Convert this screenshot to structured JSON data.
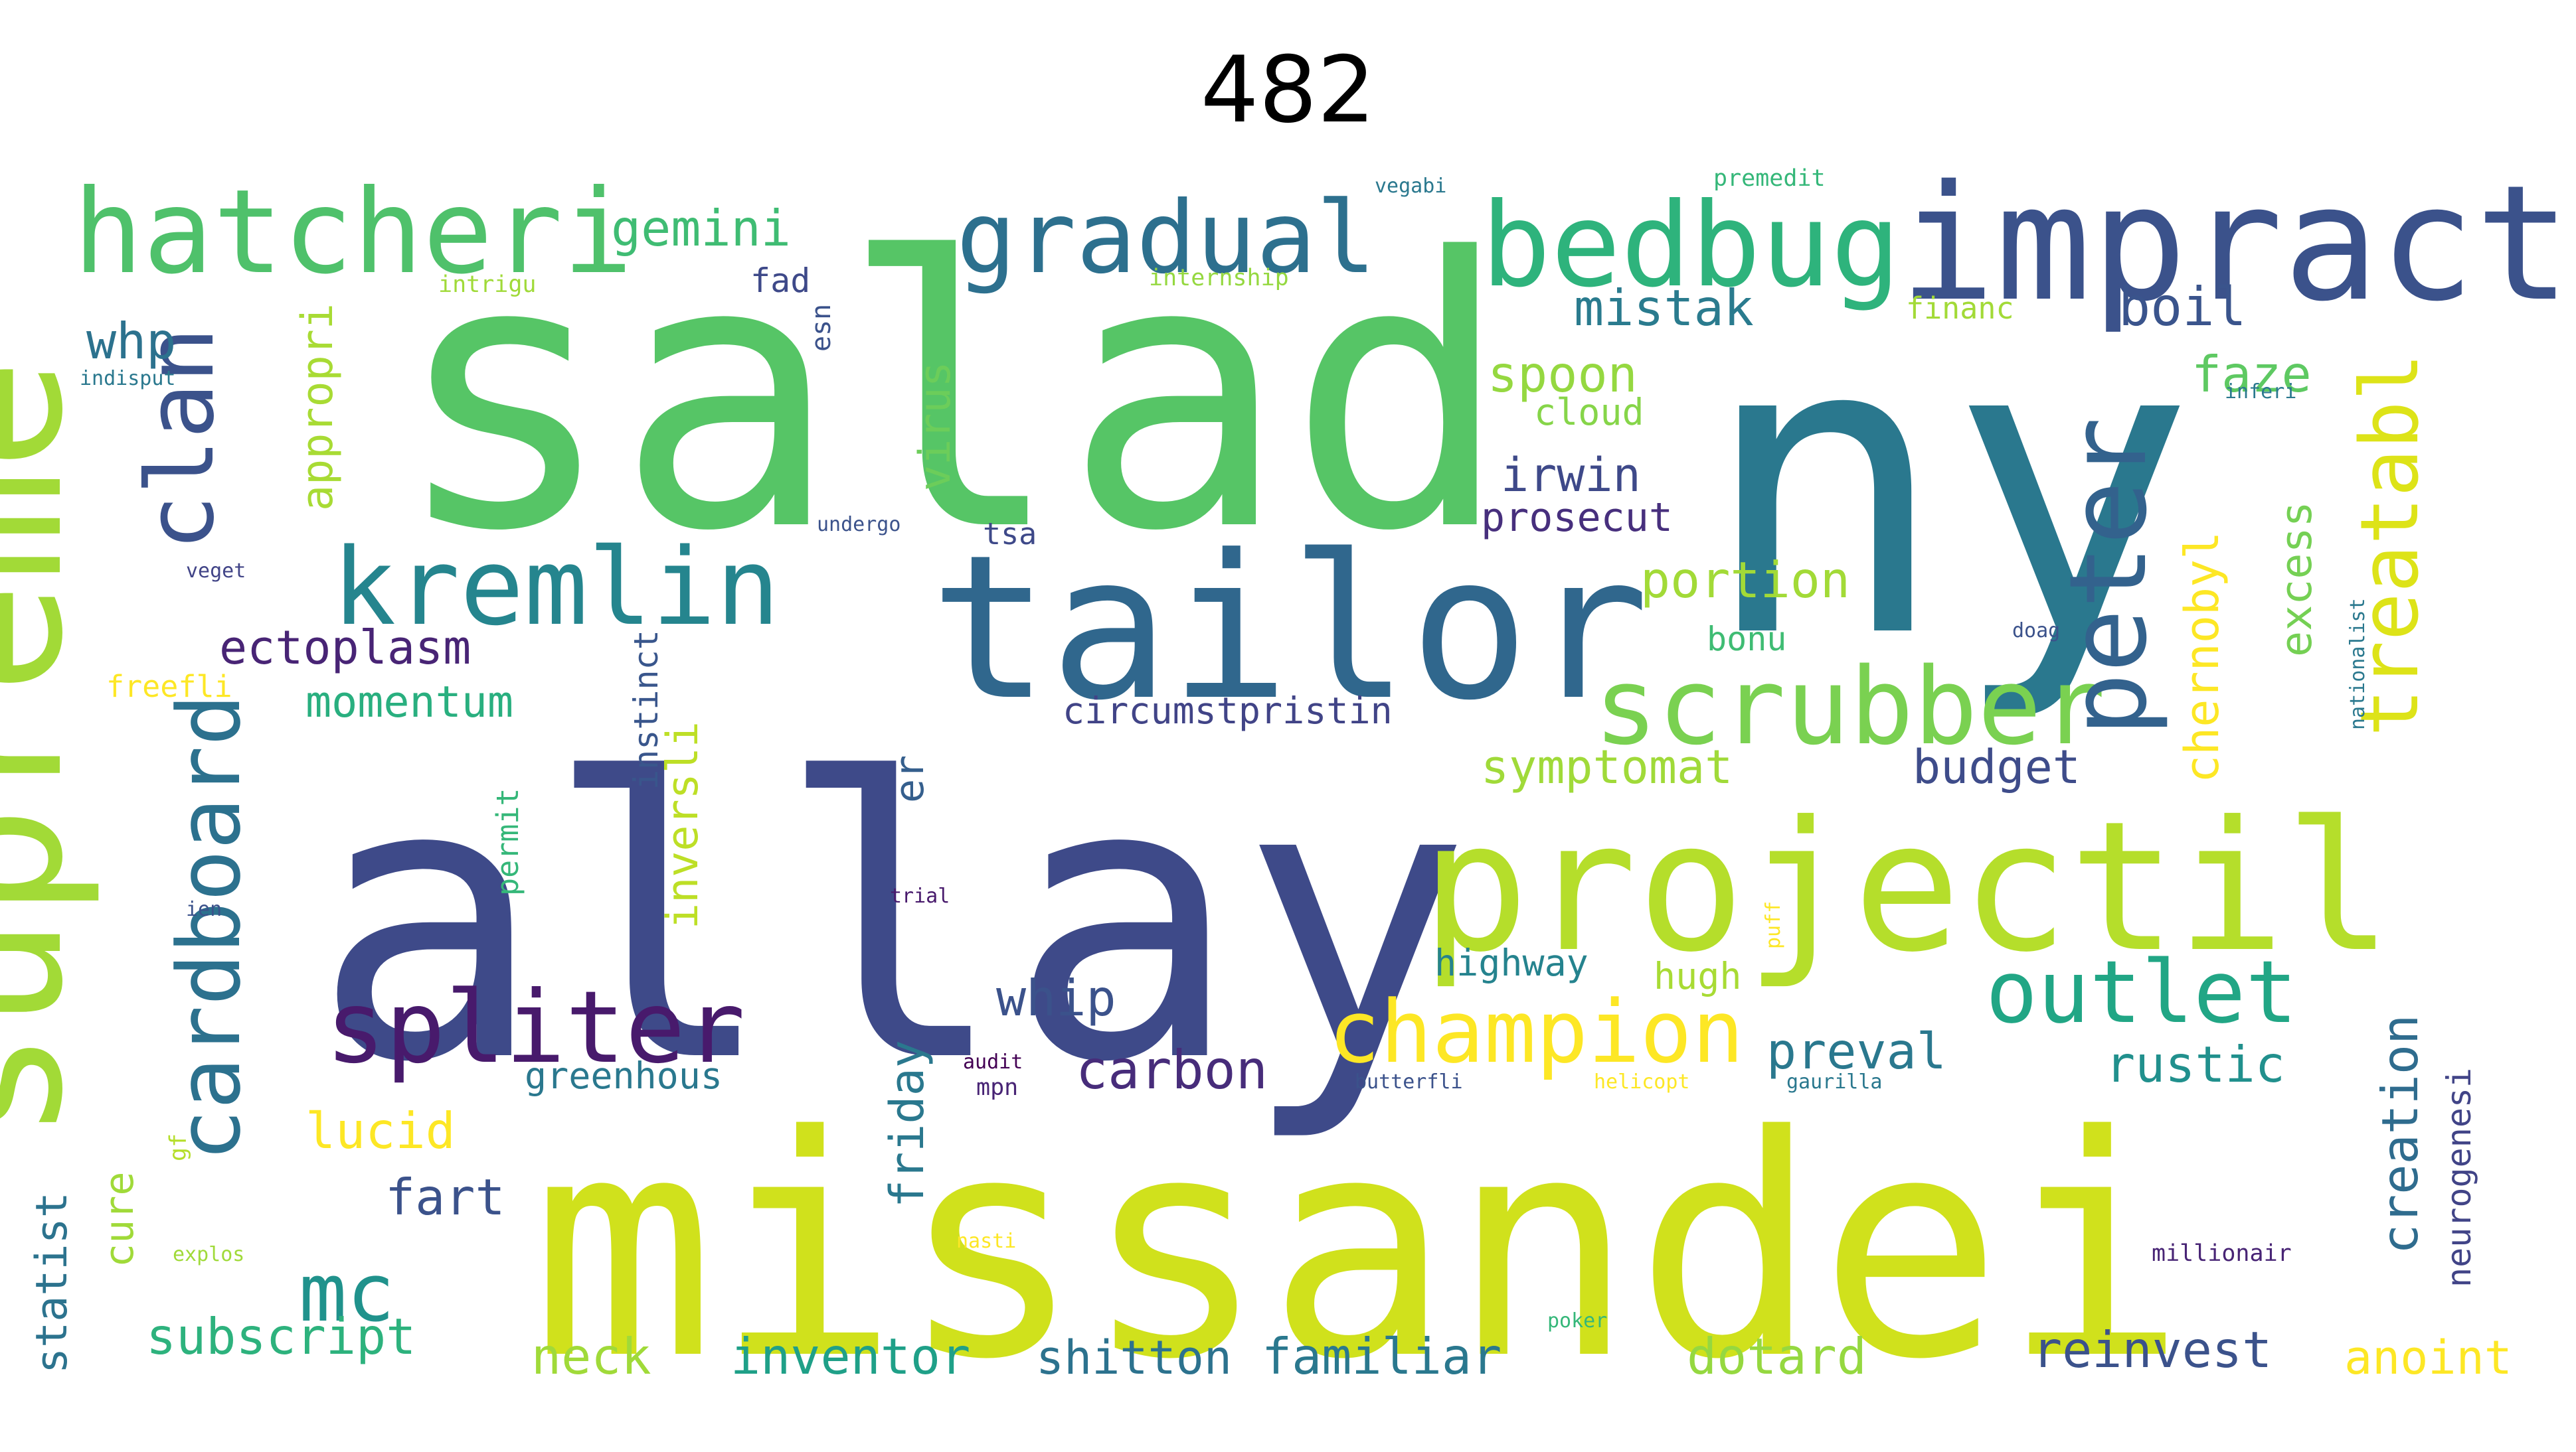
{
  "title": "482",
  "palette": "viridis",
  "words": [
    {
      "text": "salad",
      "color": "#56c566"
    },
    {
      "text": "ny",
      "color": "#2a788e"
    },
    {
      "text": "allay",
      "color": "#3e4a89"
    },
    {
      "text": "missandei",
      "color": "#d0e11c"
    },
    {
      "text": "projectil",
      "color": "#b5de2b"
    },
    {
      "text": "tailor",
      "color": "#30678d"
    },
    {
      "text": "supreme",
      "color": "#a2da37"
    },
    {
      "text": "impract",
      "color": "#3b528b"
    },
    {
      "text": "hatcheri",
      "color": "#4fc16b"
    },
    {
      "text": "bedbug",
      "color": "#2eb37c"
    },
    {
      "text": "gradual",
      "color": "#2d708e"
    },
    {
      "text": "kremlin",
      "color": "#25858e"
    },
    {
      "text": "scrubber",
      "color": "#7ad151"
    },
    {
      "text": "peter",
      "color": "#33628d"
    },
    {
      "text": "spliter",
      "color": "#481a6c"
    },
    {
      "text": "champion",
      "color": "#fde725"
    },
    {
      "text": "cardboard",
      "color": "#2c718e"
    },
    {
      "text": "clan",
      "color": "#3b528b"
    },
    {
      "text": "outlet",
      "color": "#21a685"
    },
    {
      "text": "treatabl",
      "color": "#dde318"
    },
    {
      "text": "mc",
      "color": "#20928c"
    },
    {
      "text": "gemini",
      "color": "#3fbc73"
    },
    {
      "text": "mistak",
      "color": "#2a7b8e"
    },
    {
      "text": "boil",
      "color": "#3a548c"
    },
    {
      "text": "whp",
      "color": "#2c728e"
    },
    {
      "text": "appropri",
      "color": "#a8db34"
    },
    {
      "text": "virus",
      "color": "#6ccd5a"
    },
    {
      "text": "spoon",
      "color": "#95d840"
    },
    {
      "text": "cloud",
      "color": "#86d549"
    },
    {
      "text": "faze",
      "color": "#5ec962"
    },
    {
      "text": "irwin",
      "color": "#3e4989"
    },
    {
      "text": "prosecut",
      "color": "#472f7d"
    },
    {
      "text": "portion",
      "color": "#a2da37"
    },
    {
      "text": "excess",
      "color": "#75d054"
    },
    {
      "text": "chernobyl",
      "color": "#fde725"
    },
    {
      "text": "ectoplasm",
      "color": "#482475"
    },
    {
      "text": "momentum",
      "color": "#29af7f"
    },
    {
      "text": "inversli",
      "color": "#bddf26"
    },
    {
      "text": "instinct",
      "color": "#39568c"
    },
    {
      "text": "symptomat",
      "color": "#a0da39"
    },
    {
      "text": "budget",
      "color": "#3e4c8a"
    },
    {
      "text": "circumstpristin",
      "color": "#414487"
    },
    {
      "text": "er",
      "color": "#355f8d"
    },
    {
      "text": "bonu",
      "color": "#3fbc73"
    },
    {
      "text": "whip",
      "color": "#3b528b"
    },
    {
      "text": "friday",
      "color": "#2a788e"
    },
    {
      "text": "carbon",
      "color": "#472c7a"
    },
    {
      "text": "preval",
      "color": "#2a788e"
    },
    {
      "text": "rustic",
      "color": "#21908d"
    },
    {
      "text": "creation",
      "color": "#2f6c8e"
    },
    {
      "text": "lucid",
      "color": "#fde725"
    },
    {
      "text": "fart",
      "color": "#3b528b"
    },
    {
      "text": "highway",
      "color": "#25838e"
    },
    {
      "text": "hugh",
      "color": "#a8db34"
    },
    {
      "text": "greenhous",
      "color": "#2a788e"
    },
    {
      "text": "cure",
      "color": "#a0da39"
    },
    {
      "text": "statist",
      "color": "#2c738e"
    },
    {
      "text": "subscript",
      "color": "#2db27d"
    },
    {
      "text": "neck",
      "color": "#a0da39"
    },
    {
      "text": "inventor",
      "color": "#1fa088"
    },
    {
      "text": "shitton",
      "color": "#2c728e"
    },
    {
      "text": "familiar",
      "color": "#2a788e"
    },
    {
      "text": "dotard",
      "color": "#95d840"
    },
    {
      "text": "reinvest",
      "color": "#3b528b"
    },
    {
      "text": "anoint",
      "color": "#fde725"
    },
    {
      "text": "neurogenesi",
      "color": "#414487"
    },
    {
      "text": "fad",
      "color": "#3e4989"
    },
    {
      "text": "esn",
      "color": "#3b528b"
    },
    {
      "text": "intrigu",
      "color": "#a0da39"
    },
    {
      "text": "internship",
      "color": "#95d840"
    },
    {
      "text": "vegabi",
      "color": "#2a788e"
    },
    {
      "text": "premedit",
      "color": "#35b779"
    },
    {
      "text": "financ",
      "color": "#a2da37"
    },
    {
      "text": "indisput",
      "color": "#2a788e"
    },
    {
      "text": "undergo",
      "color": "#3b528b"
    },
    {
      "text": "tsa",
      "color": "#3e4989"
    },
    {
      "text": "veget",
      "color": "#414487"
    },
    {
      "text": "freefli",
      "color": "#fde725"
    },
    {
      "text": "permit",
      "color": "#35b779"
    },
    {
      "text": "ien",
      "color": "#3b528b"
    },
    {
      "text": "trial",
      "color": "#481a6c"
    },
    {
      "text": "puff",
      "color": "#fde725"
    },
    {
      "text": "audit",
      "color": "#440154"
    },
    {
      "text": "mpn",
      "color": "#482475"
    },
    {
      "text": "butterfli",
      "color": "#3b528b"
    },
    {
      "text": "helicopt",
      "color": "#fde725"
    },
    {
      "text": "gaurilla",
      "color": "#2a788e"
    },
    {
      "text": "millionair",
      "color": "#482475"
    },
    {
      "text": "nasti",
      "color": "#fde725"
    },
    {
      "text": "poker",
      "color": "#35b779"
    },
    {
      "text": "explos",
      "color": "#a0da39"
    },
    {
      "text": "gf",
      "color": "#b5de2b"
    },
    {
      "text": "nationalist",
      "color": "#2a788e"
    },
    {
      "text": "doag",
      "color": "#3b528b"
    },
    {
      "text": "inferi",
      "color": "#2a788e"
    }
  ]
}
